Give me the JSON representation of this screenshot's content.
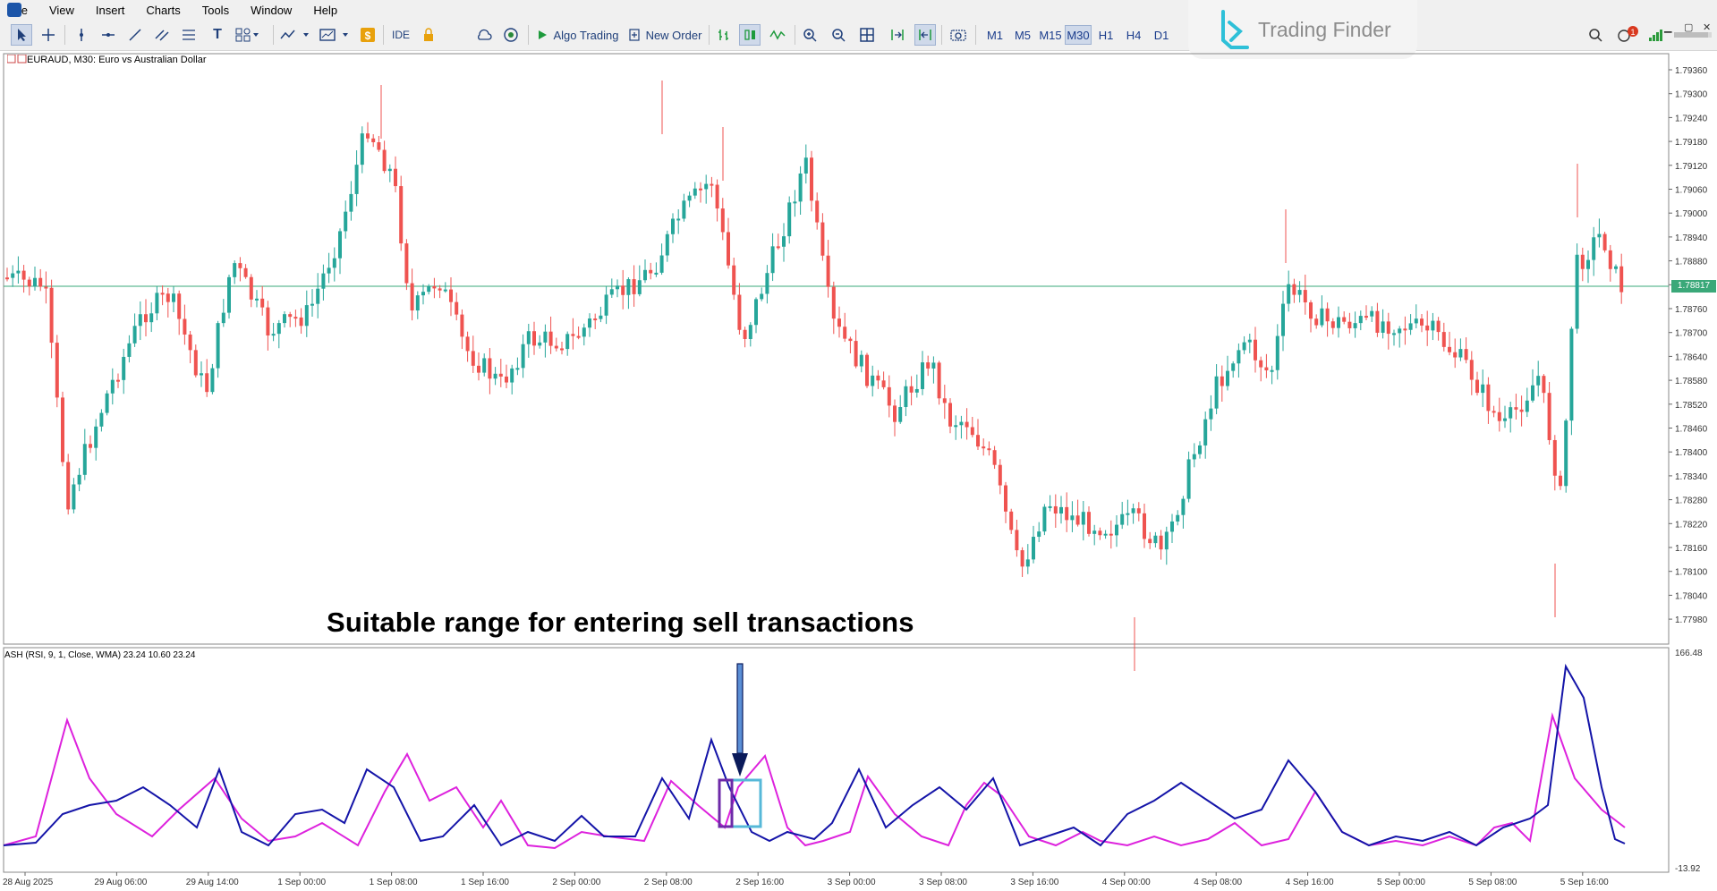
{
  "menu": [
    "File",
    "View",
    "Insert",
    "Charts",
    "Tools",
    "Window",
    "Help"
  ],
  "toolbar": {
    "ide_label": "IDE",
    "algo_trading_label": "Algo Trading",
    "new_order_label": "New Order",
    "timeframes": [
      "M1",
      "M5",
      "M15",
      "M30",
      "H1",
      "H4",
      "D1"
    ],
    "active_timeframe": "M30",
    "notification_count": "1"
  },
  "brand": {
    "name": "Trading Finder"
  },
  "chart": {
    "symbol_label": "EURAUD, M30:  Euro vs Australian Dollar",
    "current_price": "1.78817",
    "price_axis": [
      "1.79360",
      "1.79300",
      "1.79240",
      "1.79180",
      "1.79120",
      "1.79060",
      "1.79000",
      "1.78940",
      "1.78880",
      "1.78820",
      "1.78760",
      "1.78700",
      "1.78640",
      "1.78580",
      "1.78520",
      "1.78460",
      "1.78400",
      "1.78340",
      "1.78280",
      "1.78220",
      "1.78160",
      "1.78100",
      "1.78040",
      "1.77980"
    ],
    "time_axis": [
      "28 Aug 2025",
      "29 Aug 06:00",
      "29 Aug 14:00",
      "1 Sep 00:00",
      "1 Sep 08:00",
      "1 Sep 16:00",
      "2 Sep 00:00",
      "2 Sep 08:00",
      "2 Sep 16:00",
      "3 Sep 00:00",
      "3 Sep 08:00",
      "3 Sep 16:00",
      "4 Sep 00:00",
      "4 Sep 08:00",
      "4 Sep 16:00",
      "5 Sep 00:00",
      "5 Sep 08:00",
      "5 Sep 16:00"
    ],
    "bull_color": "#26a69a",
    "bear_color": "#ef5350",
    "annotation": "Suitable range for entering sell transactions"
  },
  "indicator": {
    "label": "ASH (RSI, 9, 1, Close, WMA) 23.24 10.60 23.24",
    "axis_max": "166.48",
    "axis_min": "-13.92",
    "line1_color": "#1414a8",
    "line2_color": "#dd22dd"
  }
}
